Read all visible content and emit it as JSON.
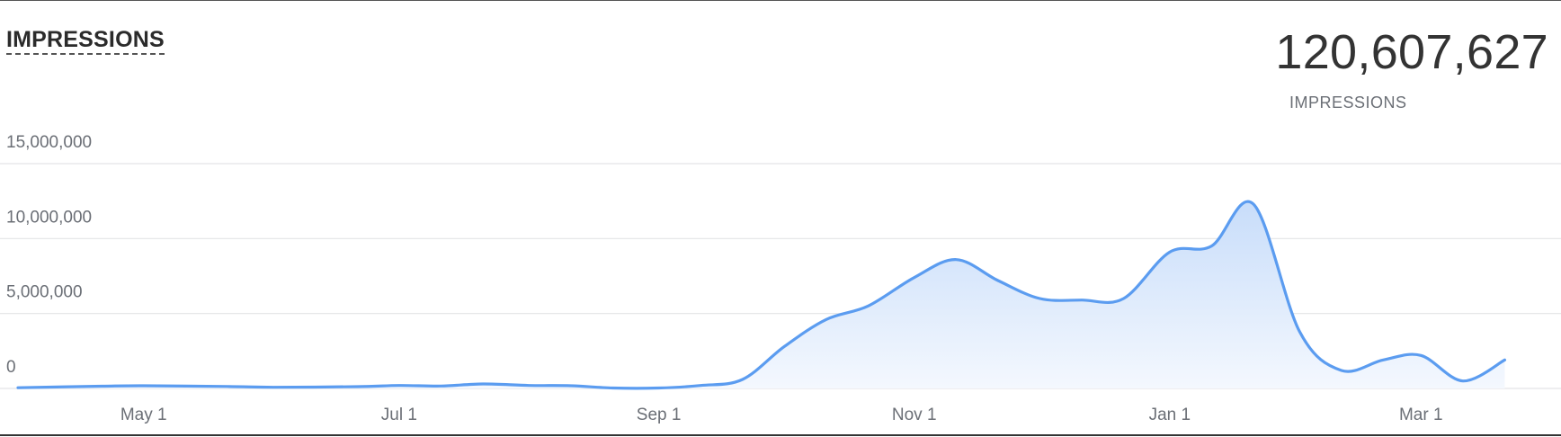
{
  "widget": {
    "title": "IMPRESSIONS",
    "total_value": "120,607,627",
    "total_label": "IMPRESSIONS"
  },
  "colors": {
    "line": "#5b9cf0",
    "fill_top": "#c8ddfa",
    "fill_bottom": "#f4f8fe",
    "grid": "#e3e4e6"
  },
  "chart_data": {
    "type": "area",
    "title": "",
    "xlabel": "",
    "ylabel": "",
    "ylim": [
      0,
      15000000
    ],
    "yticks": [
      0,
      5000000,
      10000000,
      15000000
    ],
    "ytick_labels": [
      "0",
      "5,000,000",
      "10,000,000",
      "15,000,000"
    ],
    "xlim": [
      "2023-04-01",
      "2024-03-31"
    ],
    "xticks": [
      "2023-05-01",
      "2023-07-01",
      "2023-09-01",
      "2023-11-01",
      "2024-01-01",
      "2024-03-01"
    ],
    "xtick_labels": [
      "May 1",
      "Jul 1",
      "Sep 1",
      "Nov 1",
      "Jan 1",
      "Mar 1"
    ],
    "grid": true,
    "series": [
      {
        "points": [
          [
            "2023-04-01",
            50000
          ],
          [
            "2023-04-21",
            150000
          ],
          [
            "2023-05-01",
            180000
          ],
          [
            "2023-05-21",
            130000
          ],
          [
            "2023-06-01",
            80000
          ],
          [
            "2023-06-21",
            120000
          ],
          [
            "2023-07-01",
            200000
          ],
          [
            "2023-07-11",
            160000
          ],
          [
            "2023-07-21",
            300000
          ],
          [
            "2023-08-01",
            200000
          ],
          [
            "2023-08-11",
            180000
          ],
          [
            "2023-08-21",
            30000
          ],
          [
            "2023-09-01",
            30000
          ],
          [
            "2023-09-11",
            200000
          ],
          [
            "2023-09-21",
            600000
          ],
          [
            "2023-10-01",
            2800000
          ],
          [
            "2023-10-11",
            4600000
          ],
          [
            "2023-10-21",
            5500000
          ],
          [
            "2023-11-01",
            7400000
          ],
          [
            "2023-11-11",
            8600000
          ],
          [
            "2023-11-21",
            7200000
          ],
          [
            "2023-12-01",
            6000000
          ],
          [
            "2023-12-11",
            5900000
          ],
          [
            "2023-12-21",
            6000000
          ],
          [
            "2024-01-01",
            9100000
          ],
          [
            "2024-01-11",
            9500000
          ],
          [
            "2024-01-21",
            12300000
          ],
          [
            "2024-02-01",
            3800000
          ],
          [
            "2024-02-11",
            1200000
          ],
          [
            "2024-02-21",
            1900000
          ],
          [
            "2024-03-01",
            2200000
          ],
          [
            "2024-03-11",
            500000
          ],
          [
            "2024-03-21",
            1900000
          ]
        ]
      }
    ]
  }
}
